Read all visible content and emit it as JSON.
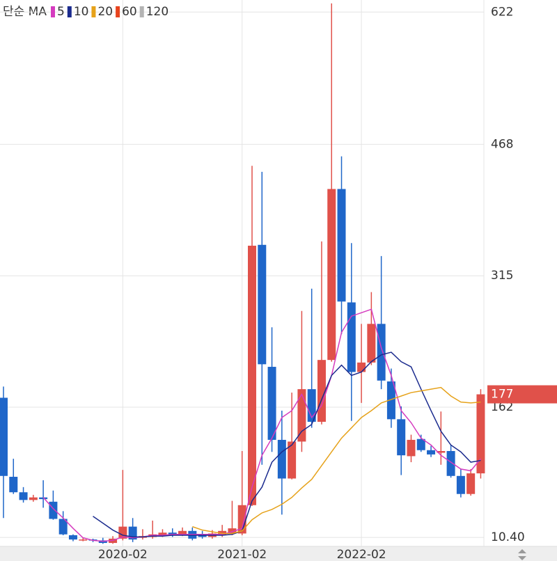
{
  "chart_data": {
    "type": "candlestick",
    "legend_title": "단순 MA",
    "categories": [
      null,
      null,
      null,
      null,
      null,
      null,
      null,
      null,
      null,
      null,
      null,
      null,
      "2020-02",
      null,
      null,
      null,
      null,
      null,
      null,
      null,
      null,
      null,
      null,
      null,
      "2021-02",
      null,
      null,
      null,
      null,
      null,
      null,
      null,
      null,
      null,
      null,
      null,
      "2022-02",
      null,
      null,
      null,
      null,
      null,
      null,
      null,
      null,
      null,
      null,
      null,
      null
    ],
    "open": [
      173,
      81,
      63,
      54,
      57,
      52,
      32,
      13,
      7,
      8,
      7,
      4,
      9,
      23,
      10,
      11,
      13,
      16,
      14,
      18,
      13,
      11,
      13,
      15,
      15,
      48,
      351,
      209,
      124,
      79,
      122,
      183,
      145,
      217,
      416,
      284,
      203,
      214,
      259,
      192,
      148,
      105,
      125,
      112,
      109,
      111,
      82,
      61,
      85
    ],
    "high": [
      186,
      102,
      69,
      60,
      77,
      65,
      41,
      14,
      10,
      9,
      10,
      12,
      89,
      33,
      20,
      30,
      20,
      21,
      22,
      22,
      18,
      19,
      25,
      53,
      111,
      443,
      436,
      255,
      158,
      179,
      274,
      300,
      355,
      632,
      454,
      353,
      259,
      296,
      338,
      207,
      163,
      130,
      130,
      117,
      157,
      118,
      90,
      90,
      183
    ],
    "low": [
      33,
      61,
      51,
      52,
      45,
      31,
      13,
      6,
      6,
      5,
      3,
      3,
      7,
      5,
      8,
      9,
      11,
      11,
      12,
      7,
      9,
      9,
      11,
      13,
      13,
      47,
      95,
      110,
      37,
      78,
      110,
      138,
      142,
      215,
      247,
      146,
      167,
      211,
      183,
      138,
      83,
      98,
      110,
      104,
      95,
      80,
      57,
      59,
      79
    ],
    "close": [
      82,
      63,
      54,
      57,
      55,
      32,
      14,
      8,
      8,
      7,
      4,
      9,
      23,
      8,
      12,
      14,
      16,
      13,
      18,
      9,
      11,
      15,
      18,
      21,
      48,
      350,
      212,
      124,
      79,
      122,
      183,
      145,
      217,
      416,
      285,
      203,
      214,
      259,
      193,
      148,
      106,
      124,
      112,
      107,
      111,
      82,
      61,
      85,
      177
    ],
    "up_color": "#e0514a",
    "down_color": "#1f66c9",
    "moving_averages": [
      {
        "name": "5",
        "color": "#d53bbf",
        "values": [
          null,
          null,
          null,
          null,
          57,
          44,
          33,
          21,
          10,
          7,
          6,
          7,
          11,
          10,
          11,
          13,
          13,
          14,
          14,
          14,
          14,
          14,
          14,
          17,
          21,
          69,
          106,
          126,
          150,
          158,
          177,
          150,
          164,
          199,
          249,
          268,
          272,
          276,
          231,
          199,
          158,
          144,
          126,
          118,
          106,
          98,
          90,
          88,
          102
        ]
      },
      {
        "name": "10",
        "color": "#1b2b8e",
        "values": [
          null,
          null,
          null,
          null,
          null,
          null,
          null,
          null,
          null,
          35,
          27,
          19,
          13,
          11,
          11,
          12,
          12,
          13,
          13,
          13,
          13,
          13,
          13,
          14,
          18,
          53,
          69,
          98,
          110,
          118,
          134,
          142,
          171,
          199,
          211,
          199,
          203,
          215,
          223,
          226,
          215,
          209,
          183,
          158,
          134,
          118,
          110,
          98,
          100
        ]
      },
      {
        "name": "20",
        "color": "#e6a21a",
        "values": [
          null,
          null,
          null,
          null,
          null,
          null,
          null,
          null,
          null,
          null,
          null,
          null,
          null,
          null,
          null,
          null,
          null,
          null,
          null,
          23,
          19,
          17,
          15,
          15,
          18,
          31,
          39,
          43,
          49,
          57,
          68,
          78,
          94,
          110,
          126,
          138,
          150,
          158,
          167,
          171,
          175,
          179,
          181,
          183,
          185,
          175,
          168,
          167,
          168
        ]
      },
      {
        "name": "60",
        "color": "#e8441e",
        "values": [
          null,
          null,
          null,
          null,
          null,
          null,
          null,
          null,
          null,
          null,
          null,
          null,
          null,
          null,
          null,
          null,
          null,
          null,
          null,
          null,
          null,
          null,
          null,
          null,
          null,
          null,
          null,
          null,
          null,
          null,
          null,
          null,
          null,
          null,
          null,
          null,
          null,
          null,
          null,
          null,
          null,
          null,
          null,
          null,
          null,
          null,
          null,
          null,
          null
        ]
      },
      {
        "name": "120",
        "color": "#b3b3b3",
        "values": [
          null,
          null,
          null,
          null,
          null,
          null,
          null,
          null,
          null,
          null,
          null,
          null,
          null,
          null,
          null,
          null,
          null,
          null,
          null,
          null,
          null,
          null,
          null,
          null,
          null,
          null,
          null,
          null,
          null,
          null,
          null,
          null,
          null,
          null,
          null,
          null,
          null,
          null,
          null,
          null,
          null,
          null,
          null,
          null,
          null,
          null,
          null,
          null,
          null
        ]
      }
    ],
    "last_price": 177,
    "ylim": [
      0,
      636
    ],
    "yticks": [
      {
        "value": 10.4,
        "label": "10.40"
      },
      162,
      315,
      468,
      622
    ],
    "grid": true
  }
}
